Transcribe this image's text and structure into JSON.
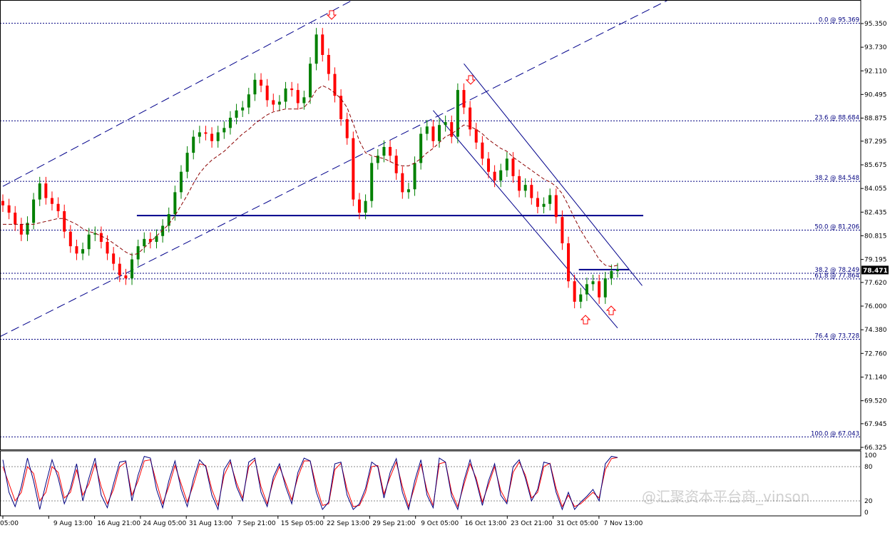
{
  "chart_data": [
    {
      "type": "line",
      "title": "",
      "price_axis": {
        "ticks": [
          "95.350",
          "93.730",
          "92.110",
          "90.495",
          "88.875",
          "87.295",
          "85.675",
          "84.055",
          "82.435",
          "80.815",
          "79.195",
          "77.620",
          "76.000",
          "74.380",
          "72.760",
          "71.140",
          "69.520",
          "67.945",
          "66.325"
        ],
        "ylim": [
          66.325,
          95.35
        ],
        "current_price": "78.471"
      },
      "time_axis": {
        "ticks": [
          "05:00",
          "9 Aug 13:00",
          "16 Aug 21:00",
          "24 Aug 05:00",
          "31 Aug 13:00",
          "7 Sep 21:00",
          "15 Sep 05:00",
          "22 Sep 13:00",
          "29 Sep 21:00",
          "9 Oct 05:00",
          "16 Oct 13:00",
          "23 Oct 21:00",
          "31 Oct 05:00",
          "7 Nov 13:00"
        ]
      },
      "fibonacci_levels": [
        {
          "label": "0.0 @ 95.369",
          "price": 95.369
        },
        {
          "label": "23.6 @ 88.684",
          "price": 88.684
        },
        {
          "label": "38.2 @ 84.548",
          "price": 84.548
        },
        {
          "label": "50.0 @ 81.206",
          "price": 81.206
        },
        {
          "label": "38.2 @ 78.249",
          "price": 78.249
        },
        {
          "label": "61.8 @ 77.864",
          "price": 77.864
        },
        {
          "label": "76.4 @ 73.728",
          "price": 73.728
        },
        {
          "label": "100.0 @ 67.043",
          "price": 67.043
        }
      ],
      "horizontal_levels": [
        82.2,
        78.5
      ],
      "series": [
        {
          "values": [
            82.9,
            82.4,
            81.6,
            80.9,
            81.7,
            83.3,
            84.4,
            83.4,
            83.0,
            82.5,
            81.1,
            80.1,
            79.6,
            79.9,
            80.9,
            81.0,
            80.4,
            79.6,
            78.9,
            78.1,
            77.9,
            79.2,
            80.1,
            80.6,
            80.4,
            80.8,
            81.5,
            82.3,
            83.8,
            85.2,
            86.5,
            87.6,
            87.9,
            87.8,
            87.3,
            87.9,
            88.2,
            88.9,
            89.4,
            89.6,
            90.5,
            91.5,
            91.1,
            90.1,
            89.8,
            90.0,
            90.9,
            90.8,
            89.9,
            90.3,
            92.6,
            94.6,
            93.2,
            91.9,
            90.4,
            88.8,
            87.5,
            83.3,
            82.4,
            83.2,
            85.8,
            86.3,
            86.9,
            86.3,
            85.1,
            83.8,
            84.0,
            85.8,
            87.8,
            88.3,
            87.3,
            88.4,
            88.6,
            87.6,
            90.8,
            89.6,
            88.1,
            87.2,
            86.1,
            85.2,
            84.6,
            85.3,
            86.1,
            84.9,
            83.9,
            84.3,
            83.4,
            82.8,
            83.0,
            83.6,
            82.1,
            80.3,
            77.7,
            76.3,
            76.8,
            77.5,
            77.7,
            76.6,
            77.9,
            78.4,
            78.5
          ]
        },
        {
          "values": [
            81.6,
            81.6,
            81.6,
            81.6,
            81.6,
            81.6,
            81.7,
            81.8,
            81.9,
            82.0,
            82.0,
            81.8,
            81.6,
            81.3,
            81.1,
            81.0,
            80.8,
            80.6,
            80.3,
            80.0,
            79.7,
            79.5,
            79.6,
            80.0,
            80.4,
            80.8,
            81.2,
            81.6,
            82.2,
            82.9,
            83.6,
            84.4,
            85.1,
            85.6,
            86.0,
            86.3,
            86.6,
            87.0,
            87.4,
            87.8,
            88.1,
            88.5,
            88.8,
            89.1,
            89.3,
            89.4,
            89.5,
            89.5,
            89.5,
            89.6,
            90.1,
            90.8,
            91.1,
            90.9,
            90.6,
            90.2,
            89.6,
            88.5,
            87.3,
            86.5,
            86.3,
            86.2,
            86.1,
            85.9,
            85.7,
            85.6,
            85.6,
            85.8,
            86.1,
            86.5,
            86.8,
            87.2,
            87.6,
            87.8,
            88.1,
            88.4,
            88.3,
            88.1,
            87.8,
            87.4,
            87.1,
            86.8,
            86.6,
            86.2,
            85.9,
            85.6,
            85.3,
            85.0,
            84.7,
            84.5,
            84.2,
            83.7,
            82.9,
            82.0,
            81.2,
            80.5,
            79.9,
            79.2,
            78.8,
            78.7,
            78.8
          ]
        }
      ],
      "oscillator": {
        "levels": [
          "100",
          "80",
          "20",
          "0"
        ],
        "ylim": [
          0,
          100
        ],
        "series": [
          {
            "values": [
              92,
              35,
              10,
              45,
              95,
              55,
              5,
              50,
              92,
              60,
              15,
              42,
              85,
              20,
              60,
              95,
              30,
              8,
              50,
              88,
              90,
              20,
              65,
              98,
              95,
              40,
              8,
              55,
              90,
              40,
              10,
              58,
              92,
              80,
              30,
              5,
              75,
              92,
              45,
              20,
              88,
              95,
              35,
              10,
              62,
              85,
              45,
              15,
              70,
              95,
              90,
              35,
              5,
              18,
              85,
              88,
              30,
              5,
              15,
              42,
              88,
              80,
              25,
              70,
              94,
              35,
              5,
              55,
              92,
              30,
              8,
              95,
              88,
              28,
              5,
              55,
              92,
              55,
              12,
              55,
              85,
              30,
              15,
              80,
              92,
              60,
              20,
              40,
              88,
              85,
              35,
              5,
              35,
              5,
              18,
              28,
              40,
              20,
              85,
              98,
              96
            ]
          },
          {
            "values": [
              80,
              50,
              20,
              35,
              80,
              68,
              20,
              35,
              80,
              70,
              25,
              35,
              75,
              30,
              50,
              85,
              45,
              15,
              40,
              80,
              88,
              30,
              55,
              90,
              92,
              52,
              15,
              45,
              82,
              50,
              18,
              48,
              85,
              82,
              40,
              12,
              65,
              88,
              52,
              25,
              80,
              92,
              45,
              15,
              55,
              80,
              52,
              22,
              62,
              90,
              90,
              45,
              12,
              15,
              75,
              86,
              40,
              10,
              12,
              35,
              80,
              82,
              32,
              62,
              88,
              45,
              10,
              45,
              85,
              38,
              12,
              85,
              88,
              35,
              10,
              48,
              85,
              60,
              18,
              48,
              80,
              38,
              18,
              70,
              88,
              65,
              25,
              35,
              80,
              86,
              42,
              10,
              30,
              10,
              15,
              25,
              35,
              25,
              75,
              94,
              96
            ]
          }
        ]
      }
    }
  ],
  "watermark_text": "@汇聚资本平台商_vinson",
  "colors": {
    "bull_candle": "#008000",
    "bear_candle": "#ff0000",
    "moving_average": "#8b0000",
    "trendline": "#00008b",
    "fib_level": "#000080",
    "price_box": "#000000",
    "arrow": "#ff0000",
    "oscillator_main": "#000080",
    "oscillator_signal": "#ff0000"
  }
}
